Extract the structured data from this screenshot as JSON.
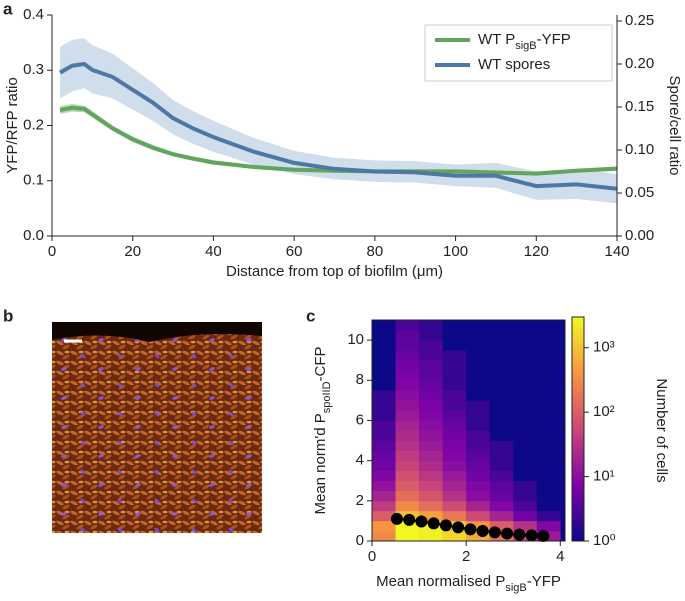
{
  "chart_data": [
    {
      "type": "line",
      "panel_label": "a",
      "xlabel": [
        {
          "text": "Distance from top of biofilm (μm)"
        }
      ],
      "ylabel": "YFP/RFP ratio",
      "y2label": "Spore/cell ratio",
      "x": [
        2,
        5,
        8,
        10,
        15,
        20,
        25,
        30,
        35,
        40,
        50,
        60,
        70,
        80,
        90,
        100,
        110,
        120,
        130,
        140
      ],
      "series": [
        {
          "name": [
            {
              "text": "WT P"
            },
            {
              "text": "sigB",
              "sub": true
            },
            {
              "text": "-YFP"
            }
          ],
          "color": "#62a65e",
          "band_color": "#a8cfa2",
          "axis": "y",
          "values": [
            0.228,
            0.232,
            0.23,
            0.22,
            0.195,
            0.175,
            0.16,
            0.148,
            0.14,
            0.133,
            0.125,
            0.12,
            0.118,
            0.117,
            0.117,
            0.117,
            0.115,
            0.113,
            0.118,
            0.122
          ],
          "lower": [
            0.221,
            0.225,
            0.224,
            0.214,
            0.19,
            0.17,
            0.155,
            0.144,
            0.136,
            0.129,
            0.121,
            0.116,
            0.114,
            0.113,
            0.113,
            0.113,
            0.111,
            0.109,
            0.114,
            0.118
          ],
          "upper": [
            0.235,
            0.239,
            0.236,
            0.226,
            0.2,
            0.18,
            0.165,
            0.152,
            0.144,
            0.137,
            0.129,
            0.124,
            0.122,
            0.121,
            0.121,
            0.121,
            0.119,
            0.117,
            0.122,
            0.126
          ]
        },
        {
          "name": [
            {
              "text": "WT spores"
            }
          ],
          "color": "#4c78a3",
          "band_color": "#c4d4e6",
          "axis": "y2",
          "values": [
            0.19,
            0.198,
            0.2,
            0.193,
            0.185,
            0.17,
            0.155,
            0.137,
            0.125,
            0.115,
            0.098,
            0.085,
            0.078,
            0.075,
            0.074,
            0.07,
            0.07,
            0.058,
            0.06,
            0.055
          ],
          "lower": [
            0.16,
            0.168,
            0.172,
            0.166,
            0.16,
            0.147,
            0.134,
            0.118,
            0.107,
            0.098,
            0.083,
            0.072,
            0.066,
            0.063,
            0.062,
            0.058,
            0.056,
            0.042,
            0.043,
            0.038
          ],
          "upper": [
            0.22,
            0.228,
            0.23,
            0.222,
            0.212,
            0.195,
            0.178,
            0.158,
            0.145,
            0.134,
            0.114,
            0.099,
            0.091,
            0.088,
            0.087,
            0.083,
            0.085,
            0.075,
            0.078,
            0.072
          ]
        }
      ],
      "xlim": [
        0,
        140
      ],
      "xticks": [
        0,
        20,
        40,
        60,
        80,
        100,
        120,
        140
      ],
      "ylim": [
        0,
        0.4
      ],
      "yticks": [
        {
          "value": 0,
          "label": "0.0"
        },
        0.1,
        0.2,
        0.3,
        0.4
      ],
      "y2lim": [
        0,
        0.25
      ],
      "y2ticks": [
        {
          "value": 0,
          "label": "0.00"
        },
        0.05,
        {
          "value": 0.1,
          "label": "0.10"
        },
        0.15,
        {
          "value": 0.2,
          "label": "0.20"
        },
        0.25
      ],
      "legend": "upper right"
    },
    {
      "type": "heatmap",
      "panel_label": "c",
      "xlabel": [
        {
          "text": "Mean normalised P"
        },
        {
          "text": "sigB",
          "sub": true
        },
        {
          "text": "-YFP"
        }
      ],
      "ylabel": [
        {
          "text": "Mean norm'd P"
        },
        {
          "text": "spoIID",
          "sub": true
        },
        {
          "text": "-CFP"
        }
      ],
      "colorbar_label": "Number of cells",
      "xbins": [
        0,
        0.5,
        1,
        1.5,
        2,
        2.5,
        3,
        3.5,
        4
      ],
      "ybins": [
        0,
        0.5,
        1,
        1.5,
        2,
        2.5,
        3,
        3.5,
        4,
        4.5,
        5,
        5.5,
        6,
        6.5,
        7,
        7.5,
        8,
        8.5,
        9,
        9.5,
        10,
        10.5,
        11
      ],
      "z": [
        [
          300,
          3000,
          2500,
          1500,
          600,
          200,
          60,
          15
        ],
        [
          400,
          3000,
          2500,
          1200,
          400,
          100,
          30,
          8
        ],
        [
          100,
          1000,
          500,
          200,
          60,
          20,
          6,
          2
        ],
        [
          40,
          300,
          150,
          60,
          20,
          8,
          3,
          1
        ],
        [
          20,
          150,
          80,
          30,
          10,
          5,
          2,
          1
        ],
        [
          12,
          100,
          50,
          20,
          8,
          4,
          2,
          1
        ],
        [
          8,
          70,
          35,
          15,
          6,
          3,
          1,
          1
        ],
        [
          6,
          50,
          25,
          10,
          5,
          2,
          1,
          1
        ],
        [
          5,
          40,
          20,
          8,
          4,
          2,
          1,
          1
        ],
        [
          4,
          30,
          15,
          7,
          3,
          2,
          1,
          1
        ],
        [
          3,
          25,
          12,
          6,
          3,
          1,
          1,
          1
        ],
        [
          3,
          20,
          10,
          5,
          2,
          1,
          1,
          1
        ],
        [
          2,
          15,
          8,
          4,
          2,
          1,
          1,
          1
        ],
        [
          2,
          12,
          7,
          3,
          2,
          1,
          1,
          1
        ],
        [
          2,
          10,
          6,
          3,
          1,
          1,
          1,
          1
        ],
        [
          1,
          8,
          5,
          2,
          1,
          1,
          1,
          1
        ],
        [
          1,
          7,
          4,
          2,
          1,
          1,
          1,
          1
        ],
        [
          1,
          6,
          4,
          2,
          1,
          1,
          1,
          1
        ],
        [
          1,
          5,
          3,
          2,
          1,
          1,
          1,
          1
        ],
        [
          1,
          4,
          3,
          1,
          1,
          1,
          1,
          1
        ],
        [
          1,
          4,
          2,
          1,
          1,
          1,
          1,
          1
        ],
        [
          1,
          3,
          2,
          1,
          1,
          1,
          1,
          1
        ]
      ],
      "colormap": [
        "#0d0887",
        "#7e03a8",
        "#cc4778",
        "#f89540",
        "#f0f921"
      ],
      "clim": [
        1,
        3000
      ],
      "color_log": true,
      "cticks": [
        {
          "value": 1,
          "label": "10⁰"
        },
        {
          "value": 10,
          "label": "10¹"
        },
        {
          "value": 100,
          "label": "10²"
        },
        {
          "value": 1000,
          "label": "10³"
        }
      ],
      "overlay": {
        "color": "#000000",
        "x": [
          0.53,
          0.79,
          1.05,
          1.31,
          1.57,
          1.83,
          2.09,
          2.35,
          2.61,
          2.87,
          3.13,
          3.39,
          3.64
        ],
        "values": [
          1.1,
          1.05,
          0.97,
          0.88,
          0.78,
          0.68,
          0.58,
          0.5,
          0.43,
          0.37,
          0.32,
          0.28,
          0.25
        ]
      },
      "xlim": [
        0,
        4.1
      ],
      "xticks": [
        0,
        2,
        4
      ],
      "ylim": [
        0,
        11
      ],
      "yticks": [
        0,
        2,
        4,
        6,
        8,
        10
      ]
    }
  ],
  "image_panel": {
    "label": "b"
  }
}
